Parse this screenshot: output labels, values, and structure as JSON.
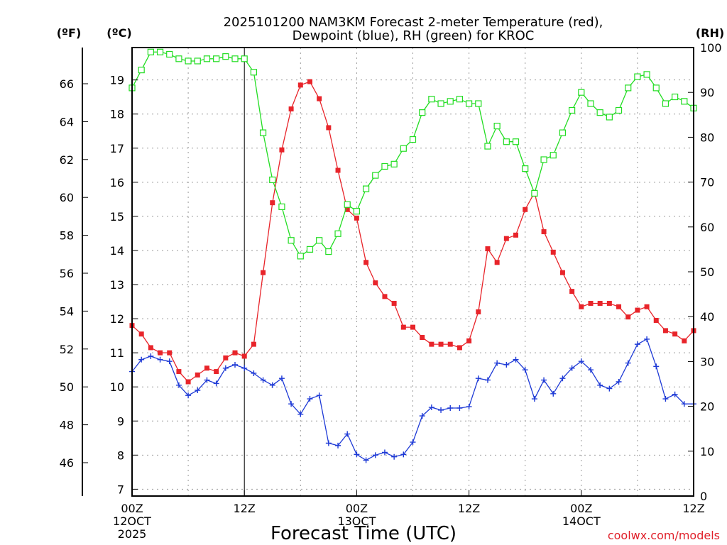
{
  "chart_data": {
    "type": "line",
    "title_line1": "2025101200 NAM3KM Forecast 2-meter Temperature (red),",
    "title_line2": "Dewpoint (blue), RH (green) for KROC",
    "xlabel": "Forecast Time (UTC)",
    "watermark": "coolwx.com/models",
    "axes": {
      "x_range_hours": [
        0,
        60
      ],
      "y_celsius": {
        "label": "(ºC)",
        "range": [
          6.8,
          19.95
        ],
        "ticks": [
          7,
          8,
          9,
          10,
          11,
          12,
          13,
          14,
          15,
          16,
          17,
          18,
          19
        ]
      },
      "y_fahrenheit": {
        "label": "(ºF)",
        "ticks": [
          46,
          48,
          50,
          52,
          54,
          56,
          58,
          60,
          62,
          64,
          66
        ]
      },
      "y_rh": {
        "label": "(RH)",
        "range": [
          0,
          100
        ],
        "ticks": [
          0,
          10,
          20,
          30,
          40,
          50,
          60,
          70,
          80,
          90,
          100
        ]
      }
    },
    "x_ticks": [
      {
        "hour": 0,
        "line1": "00Z",
        "line2": "12OCT",
        "line3": "2025"
      },
      {
        "hour": 12,
        "line1": "12Z",
        "line2": "",
        "line3": ""
      },
      {
        "hour": 24,
        "line1": "00Z",
        "line2": "13OCT",
        "line3": ""
      },
      {
        "hour": 36,
        "line1": "12Z",
        "line2": "",
        "line3": ""
      },
      {
        "hour": 48,
        "line1": "00Z",
        "line2": "14OCT",
        "line3": ""
      },
      {
        "hour": 60,
        "line1": "12Z",
        "line2": "",
        "line3": ""
      }
    ],
    "series": [
      {
        "name": "Temperature (°C)",
        "color": "#e8242a",
        "marker": "filled-square",
        "axis": "celsius",
        "values": [
          11.8,
          11.55,
          11.15,
          11.0,
          11.0,
          10.45,
          10.15,
          10.35,
          10.55,
          10.45,
          10.85,
          11.0,
          10.9,
          11.25,
          13.35,
          15.4,
          16.95,
          18.15,
          18.85,
          18.95,
          18.45,
          17.6,
          16.35,
          15.2,
          14.95,
          13.65,
          13.05,
          12.65,
          12.45,
          11.75,
          11.75,
          11.45,
          11.25,
          11.25,
          11.25,
          11.15,
          11.35,
          12.2,
          14.05,
          13.65,
          14.35,
          14.45,
          15.2,
          15.7,
          14.55,
          13.95,
          13.35,
          12.8,
          12.35,
          12.45,
          12.45,
          12.45,
          12.35,
          12.05,
          12.25,
          12.35,
          11.95,
          11.65,
          11.55,
          11.35,
          11.65
        ]
      },
      {
        "name": "Dewpoint (°C)",
        "color": "#1e3ad6",
        "marker": "plus",
        "axis": "celsius",
        "values": [
          10.45,
          10.8,
          10.9,
          10.8,
          10.75,
          10.05,
          9.75,
          9.9,
          10.2,
          10.1,
          10.55,
          10.65,
          10.55,
          10.4,
          10.2,
          10.05,
          10.25,
          9.5,
          9.2,
          9.65,
          9.75,
          8.35,
          8.28,
          8.62,
          8.02,
          7.85,
          8.0,
          8.08,
          7.95,
          8.02,
          8.38,
          9.15,
          9.4,
          9.32,
          9.38,
          9.38,
          9.42,
          10.25,
          10.2,
          10.7,
          10.65,
          10.8,
          10.5,
          9.65,
          10.2,
          9.8,
          10.25,
          10.55,
          10.75,
          10.5,
          10.05,
          9.95,
          10.15,
          10.7,
          11.25,
          11.4,
          10.6,
          9.65,
          9.78,
          9.5,
          9.5
        ]
      },
      {
        "name": "RH (%)",
        "color": "#22dd22",
        "marker": "open-square",
        "axis": "rh",
        "values": [
          91,
          95,
          99,
          99,
          98.5,
          97.5,
          97,
          97,
          97.5,
          97.5,
          98,
          97.5,
          97.5,
          94.5,
          81,
          70.5,
          64.5,
          57,
          53.5,
          55,
          57,
          54.5,
          58.5,
          65,
          63.5,
          68.5,
          71.5,
          73.5,
          74,
          77.5,
          79.5,
          85.5,
          88.5,
          87.5,
          88,
          88.5,
          87.5,
          87.5,
          78,
          82.5,
          79,
          79,
          73,
          67.5,
          75,
          76,
          81,
          86,
          90,
          87.5,
          85.5,
          84.5,
          86,
          91,
          93.5,
          94,
          91,
          87.5,
          89,
          88,
          86.5
        ]
      }
    ]
  }
}
